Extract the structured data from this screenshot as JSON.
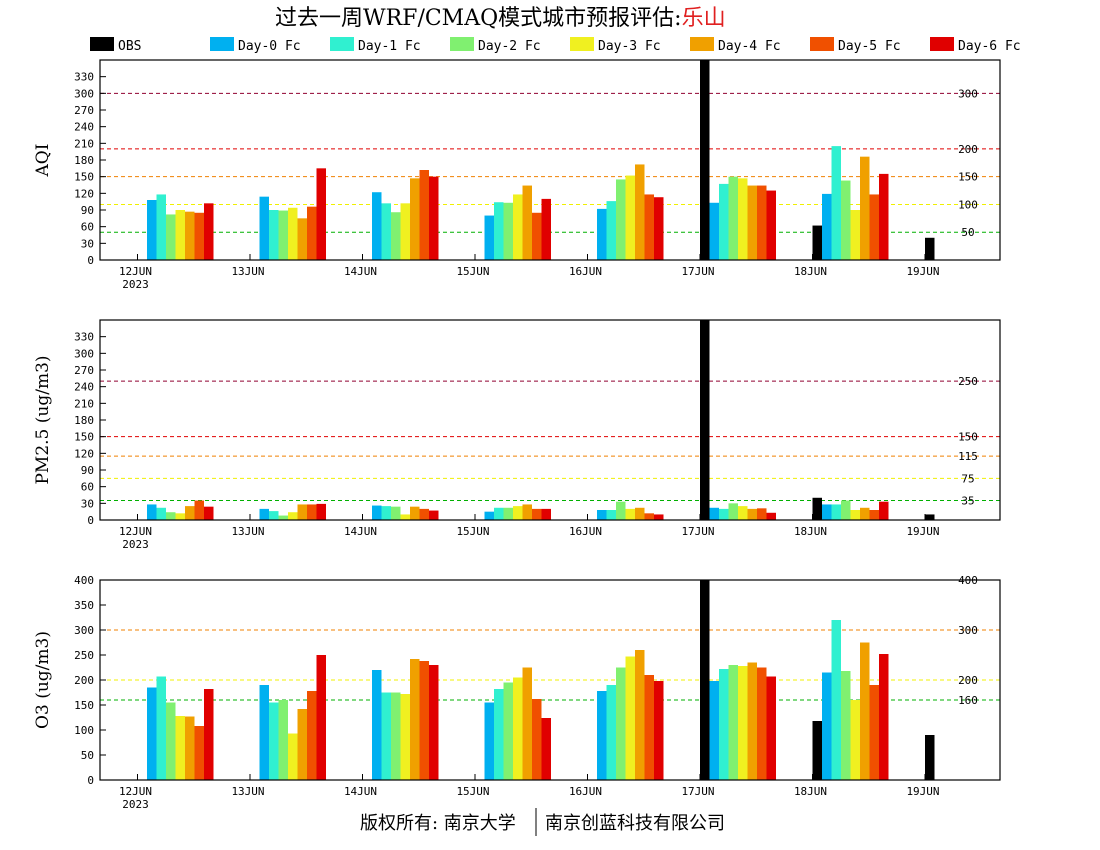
{
  "title": {
    "main": "过去一周WRF/CMAQ模式城市预报评估:",
    "city": "乐山",
    "city_color": "#e02020"
  },
  "footer": {
    "left": "版权所有: 南京大学",
    "right": "南京创蓝科技有限公司"
  },
  "legend": [
    {
      "name": "OBS",
      "color": "#000000"
    },
    {
      "name": "Day-0 Fc",
      "color": "#00b0f0"
    },
    {
      "name": "Day-1 Fc",
      "color": "#30f0d0"
    },
    {
      "name": "Day-2 Fc",
      "color": "#80f070"
    },
    {
      "name": "Day-3 Fc",
      "color": "#f0f020"
    },
    {
      "name": "Day-4 Fc",
      "color": "#f0a000"
    },
    {
      "name": "Day-5 Fc",
      "color": "#f05000"
    },
    {
      "name": "Day-6 Fc",
      "color": "#e00000"
    }
  ],
  "chart_data": [
    {
      "type": "bar",
      "ylabel": "AQI",
      "categories": [
        "12JUN",
        "13JUN",
        "14JUN",
        "15JUN",
        "16JUN",
        "17JUN",
        "18JUN",
        "19JUN"
      ],
      "year_label": "2023",
      "ylim": [
        0,
        360
      ],
      "yticks": [
        0,
        30,
        60,
        90,
        120,
        150,
        180,
        210,
        240,
        270,
        300,
        330
      ],
      "thresholds": [
        {
          "value": 50,
          "label": "50",
          "color": "#00b000"
        },
        {
          "value": 100,
          "label": "100",
          "color": "#f0f000"
        },
        {
          "value": 150,
          "label": "150",
          "color": "#f08000"
        },
        {
          "value": 200,
          "label": "200",
          "color": "#e00000"
        },
        {
          "value": 300,
          "label": "300",
          "color": "#900030"
        }
      ],
      "series": [
        {
          "name": "OBS",
          "values": [
            null,
            null,
            null,
            null,
            null,
            360,
            62,
            40
          ]
        },
        {
          "name": "Day-0 Fc",
          "values": [
            108,
            114,
            122,
            80,
            92,
            103,
            119,
            null
          ]
        },
        {
          "name": "Day-1 Fc",
          "values": [
            118,
            90,
            102,
            104,
            106,
            137,
            205,
            null
          ]
        },
        {
          "name": "Day-2 Fc",
          "values": [
            82,
            89,
            86,
            103,
            145,
            150,
            143,
            null
          ]
        },
        {
          "name": "Day-3 Fc",
          "values": [
            90,
            94,
            102,
            118,
            152,
            147,
            90,
            null
          ]
        },
        {
          "name": "Day-4 Fc",
          "values": [
            87,
            75,
            147,
            134,
            172,
            134,
            186,
            null
          ]
        },
        {
          "name": "Day-5 Fc",
          "values": [
            85,
            96,
            162,
            85,
            118,
            134,
            118,
            null
          ]
        },
        {
          "name": "Day-6 Fc",
          "values": [
            102,
            165,
            150,
            110,
            113,
            125,
            155,
            null
          ]
        }
      ]
    },
    {
      "type": "bar",
      "ylabel": "PM2.5 (ug/m3)",
      "categories": [
        "12JUN",
        "13JUN",
        "14JUN",
        "15JUN",
        "16JUN",
        "17JUN",
        "18JUN",
        "19JUN"
      ],
      "year_label": "2023",
      "ylim": [
        0,
        360
      ],
      "yticks": [
        0,
        30,
        60,
        90,
        120,
        150,
        180,
        210,
        240,
        270,
        300,
        330
      ],
      "thresholds": [
        {
          "value": 35,
          "label": "35",
          "color": "#00b000"
        },
        {
          "value": 75,
          "label": "75",
          "color": "#f0f000"
        },
        {
          "value": 115,
          "label": "115",
          "color": "#f08000"
        },
        {
          "value": 150,
          "label": "150",
          "color": "#e00000"
        },
        {
          "value": 250,
          "label": "250",
          "color": "#900030"
        }
      ],
      "series": [
        {
          "name": "OBS",
          "values": [
            null,
            null,
            null,
            null,
            null,
            360,
            40,
            10
          ]
        },
        {
          "name": "Day-0 Fc",
          "values": [
            28,
            20,
            26,
            15,
            18,
            22,
            28,
            null
          ]
        },
        {
          "name": "Day-1 Fc",
          "values": [
            22,
            16,
            25,
            22,
            18,
            20,
            28,
            null
          ]
        },
        {
          "name": "Day-2 Fc",
          "values": [
            14,
            8,
            24,
            22,
            33,
            30,
            35,
            null
          ]
        },
        {
          "name": "Day-3 Fc",
          "values": [
            12,
            14,
            10,
            25,
            20,
            25,
            18,
            null
          ]
        },
        {
          "name": "Day-4 Fc",
          "values": [
            25,
            28,
            24,
            28,
            22,
            20,
            22,
            null
          ]
        },
        {
          "name": "Day-5 Fc",
          "values": [
            35,
            28,
            20,
            20,
            12,
            21,
            18,
            null
          ]
        },
        {
          "name": "Day-6 Fc",
          "values": [
            24,
            29,
            17,
            20,
            10,
            13,
            33,
            null
          ]
        }
      ]
    },
    {
      "type": "bar",
      "ylabel": "O3 (ug/m3)",
      "categories": [
        "12JUN",
        "13JUN",
        "14JUN",
        "15JUN",
        "16JUN",
        "17JUN",
        "18JUN",
        "19JUN"
      ],
      "year_label": "2023",
      "ylim": [
        0,
        400
      ],
      "yticks": [
        0,
        50,
        100,
        150,
        200,
        250,
        300,
        350,
        400
      ],
      "thresholds": [
        {
          "value": 160,
          "label": "160",
          "color": "#00b000"
        },
        {
          "value": 200,
          "label": "200",
          "color": "#f0f000"
        },
        {
          "value": 300,
          "label": "300",
          "color": "#f08000"
        },
        {
          "value": 400,
          "label": "400",
          "color": "#e00000"
        }
      ],
      "series": [
        {
          "name": "OBS",
          "values": [
            null,
            null,
            null,
            null,
            null,
            400,
            118,
            90
          ]
        },
        {
          "name": "Day-0 Fc",
          "values": [
            185,
            190,
            220,
            155,
            178,
            198,
            215,
            null
          ]
        },
        {
          "name": "Day-1 Fc",
          "values": [
            207,
            155,
            175,
            182,
            190,
            222,
            320,
            null
          ]
        },
        {
          "name": "Day-2 Fc",
          "values": [
            155,
            160,
            175,
            195,
            225,
            230,
            218,
            null
          ]
        },
        {
          "name": "Day-3 Fc",
          "values": [
            128,
            93,
            172,
            205,
            247,
            228,
            160,
            null
          ]
        },
        {
          "name": "Day-4 Fc",
          "values": [
            127,
            142,
            242,
            225,
            260,
            235,
            275,
            null
          ]
        },
        {
          "name": "Day-5 Fc",
          "values": [
            108,
            178,
            238,
            162,
            210,
            225,
            190,
            null
          ]
        },
        {
          "name": "Day-6 Fc",
          "values": [
            182,
            250,
            230,
            124,
            198,
            207,
            252,
            null
          ]
        }
      ]
    }
  ]
}
